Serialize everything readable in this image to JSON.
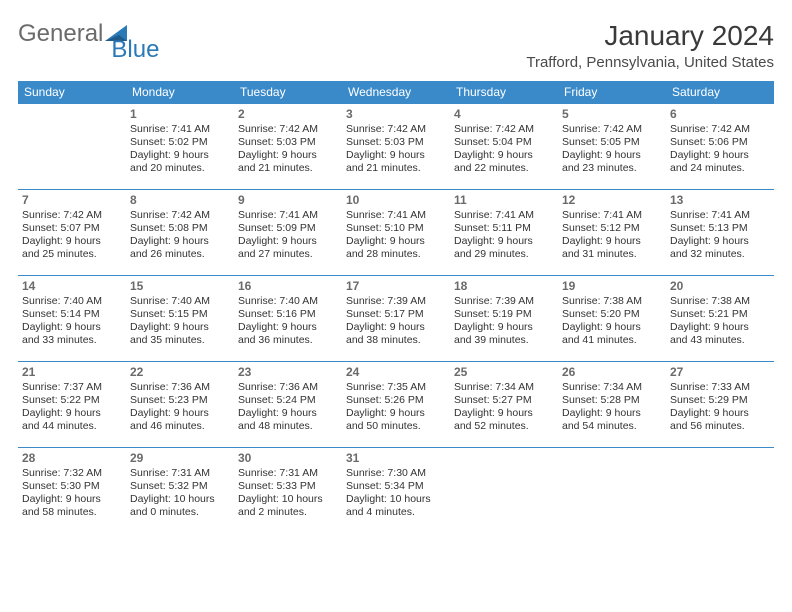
{
  "logo": {
    "part1": "General",
    "part2": "Blue"
  },
  "title": "January 2024",
  "location": "Trafford, Pennsylvania, United States",
  "colors": {
    "header_bg": "#3a8ac9",
    "header_text": "#ffffff",
    "border": "#3a8ac9",
    "logo_gray": "#6b6b6b",
    "logo_blue": "#2a7ab8",
    "title_color": "#3a3a3a",
    "daynum_color": "#6a6a6a",
    "body_text": "#333333",
    "background": "#ffffff"
  },
  "day_headers": [
    "Sunday",
    "Monday",
    "Tuesday",
    "Wednesday",
    "Thursday",
    "Friday",
    "Saturday"
  ],
  "weeks": [
    [
      null,
      {
        "n": "1",
        "sr": "Sunrise: 7:41 AM",
        "ss": "Sunset: 5:02 PM",
        "d1": "Daylight: 9 hours",
        "d2": "and 20 minutes."
      },
      {
        "n": "2",
        "sr": "Sunrise: 7:42 AM",
        "ss": "Sunset: 5:03 PM",
        "d1": "Daylight: 9 hours",
        "d2": "and 21 minutes."
      },
      {
        "n": "3",
        "sr": "Sunrise: 7:42 AM",
        "ss": "Sunset: 5:03 PM",
        "d1": "Daylight: 9 hours",
        "d2": "and 21 minutes."
      },
      {
        "n": "4",
        "sr": "Sunrise: 7:42 AM",
        "ss": "Sunset: 5:04 PM",
        "d1": "Daylight: 9 hours",
        "d2": "and 22 minutes."
      },
      {
        "n": "5",
        "sr": "Sunrise: 7:42 AM",
        "ss": "Sunset: 5:05 PM",
        "d1": "Daylight: 9 hours",
        "d2": "and 23 minutes."
      },
      {
        "n": "6",
        "sr": "Sunrise: 7:42 AM",
        "ss": "Sunset: 5:06 PM",
        "d1": "Daylight: 9 hours",
        "d2": "and 24 minutes."
      }
    ],
    [
      {
        "n": "7",
        "sr": "Sunrise: 7:42 AM",
        "ss": "Sunset: 5:07 PM",
        "d1": "Daylight: 9 hours",
        "d2": "and 25 minutes."
      },
      {
        "n": "8",
        "sr": "Sunrise: 7:42 AM",
        "ss": "Sunset: 5:08 PM",
        "d1": "Daylight: 9 hours",
        "d2": "and 26 minutes."
      },
      {
        "n": "9",
        "sr": "Sunrise: 7:41 AM",
        "ss": "Sunset: 5:09 PM",
        "d1": "Daylight: 9 hours",
        "d2": "and 27 minutes."
      },
      {
        "n": "10",
        "sr": "Sunrise: 7:41 AM",
        "ss": "Sunset: 5:10 PM",
        "d1": "Daylight: 9 hours",
        "d2": "and 28 minutes."
      },
      {
        "n": "11",
        "sr": "Sunrise: 7:41 AM",
        "ss": "Sunset: 5:11 PM",
        "d1": "Daylight: 9 hours",
        "d2": "and 29 minutes."
      },
      {
        "n": "12",
        "sr": "Sunrise: 7:41 AM",
        "ss": "Sunset: 5:12 PM",
        "d1": "Daylight: 9 hours",
        "d2": "and 31 minutes."
      },
      {
        "n": "13",
        "sr": "Sunrise: 7:41 AM",
        "ss": "Sunset: 5:13 PM",
        "d1": "Daylight: 9 hours",
        "d2": "and 32 minutes."
      }
    ],
    [
      {
        "n": "14",
        "sr": "Sunrise: 7:40 AM",
        "ss": "Sunset: 5:14 PM",
        "d1": "Daylight: 9 hours",
        "d2": "and 33 minutes."
      },
      {
        "n": "15",
        "sr": "Sunrise: 7:40 AM",
        "ss": "Sunset: 5:15 PM",
        "d1": "Daylight: 9 hours",
        "d2": "and 35 minutes."
      },
      {
        "n": "16",
        "sr": "Sunrise: 7:40 AM",
        "ss": "Sunset: 5:16 PM",
        "d1": "Daylight: 9 hours",
        "d2": "and 36 minutes."
      },
      {
        "n": "17",
        "sr": "Sunrise: 7:39 AM",
        "ss": "Sunset: 5:17 PM",
        "d1": "Daylight: 9 hours",
        "d2": "and 38 minutes."
      },
      {
        "n": "18",
        "sr": "Sunrise: 7:39 AM",
        "ss": "Sunset: 5:19 PM",
        "d1": "Daylight: 9 hours",
        "d2": "and 39 minutes."
      },
      {
        "n": "19",
        "sr": "Sunrise: 7:38 AM",
        "ss": "Sunset: 5:20 PM",
        "d1": "Daylight: 9 hours",
        "d2": "and 41 minutes."
      },
      {
        "n": "20",
        "sr": "Sunrise: 7:38 AM",
        "ss": "Sunset: 5:21 PM",
        "d1": "Daylight: 9 hours",
        "d2": "and 43 minutes."
      }
    ],
    [
      {
        "n": "21",
        "sr": "Sunrise: 7:37 AM",
        "ss": "Sunset: 5:22 PM",
        "d1": "Daylight: 9 hours",
        "d2": "and 44 minutes."
      },
      {
        "n": "22",
        "sr": "Sunrise: 7:36 AM",
        "ss": "Sunset: 5:23 PM",
        "d1": "Daylight: 9 hours",
        "d2": "and 46 minutes."
      },
      {
        "n": "23",
        "sr": "Sunrise: 7:36 AM",
        "ss": "Sunset: 5:24 PM",
        "d1": "Daylight: 9 hours",
        "d2": "and 48 minutes."
      },
      {
        "n": "24",
        "sr": "Sunrise: 7:35 AM",
        "ss": "Sunset: 5:26 PM",
        "d1": "Daylight: 9 hours",
        "d2": "and 50 minutes."
      },
      {
        "n": "25",
        "sr": "Sunrise: 7:34 AM",
        "ss": "Sunset: 5:27 PM",
        "d1": "Daylight: 9 hours",
        "d2": "and 52 minutes."
      },
      {
        "n": "26",
        "sr": "Sunrise: 7:34 AM",
        "ss": "Sunset: 5:28 PM",
        "d1": "Daylight: 9 hours",
        "d2": "and 54 minutes."
      },
      {
        "n": "27",
        "sr": "Sunrise: 7:33 AM",
        "ss": "Sunset: 5:29 PM",
        "d1": "Daylight: 9 hours",
        "d2": "and 56 minutes."
      }
    ],
    [
      {
        "n": "28",
        "sr": "Sunrise: 7:32 AM",
        "ss": "Sunset: 5:30 PM",
        "d1": "Daylight: 9 hours",
        "d2": "and 58 minutes."
      },
      {
        "n": "29",
        "sr": "Sunrise: 7:31 AM",
        "ss": "Sunset: 5:32 PM",
        "d1": "Daylight: 10 hours",
        "d2": "and 0 minutes."
      },
      {
        "n": "30",
        "sr": "Sunrise: 7:31 AM",
        "ss": "Sunset: 5:33 PM",
        "d1": "Daylight: 10 hours",
        "d2": "and 2 minutes."
      },
      {
        "n": "31",
        "sr": "Sunrise: 7:30 AM",
        "ss": "Sunset: 5:34 PM",
        "d1": "Daylight: 10 hours",
        "d2": "and 4 minutes."
      },
      null,
      null,
      null
    ]
  ]
}
